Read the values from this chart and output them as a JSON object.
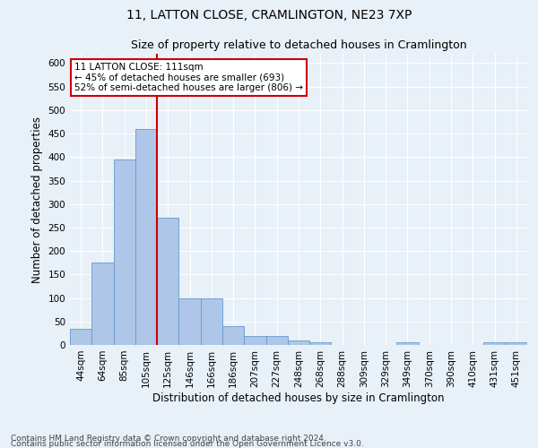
{
  "title": "11, LATTON CLOSE, CRAMLINGTON, NE23 7XP",
  "subtitle": "Size of property relative to detached houses in Cramlington",
  "xlabel": "Distribution of detached houses by size in Cramlington",
  "ylabel": "Number of detached properties",
  "footer_line1": "Contains HM Land Registry data © Crown copyright and database right 2024.",
  "footer_line2": "Contains public sector information licensed under the Open Government Licence v3.0.",
  "categories": [
    "44sqm",
    "64sqm",
    "85sqm",
    "105sqm",
    "125sqm",
    "146sqm",
    "166sqm",
    "186sqm",
    "207sqm",
    "227sqm",
    "248sqm",
    "268sqm",
    "288sqm",
    "309sqm",
    "329sqm",
    "349sqm",
    "370sqm",
    "390sqm",
    "410sqm",
    "431sqm",
    "451sqm"
  ],
  "values": [
    35,
    175,
    395,
    460,
    270,
    100,
    100,
    40,
    20,
    20,
    10,
    5,
    0,
    0,
    0,
    5,
    0,
    0,
    0,
    5,
    5
  ],
  "bar_color": "#aec6e8",
  "bar_edge_color": "#6699cc",
  "vline_x": 3.5,
  "vline_color": "#cc0000",
  "annotation_line1": "11 LATTON CLOSE: 111sqm",
  "annotation_line2": "← 45% of detached houses are smaller (693)",
  "annotation_line3": "52% of semi-detached houses are larger (806) →",
  "annotation_box_color": "#ffffff",
  "annotation_box_edge": "#cc0000",
  "ylim": [
    0,
    620
  ],
  "yticks": [
    0,
    50,
    100,
    150,
    200,
    250,
    300,
    350,
    400,
    450,
    500,
    550,
    600
  ],
  "background_color": "#e8f0f8",
  "grid_color": "#ffffff",
  "title_fontsize": 10,
  "subtitle_fontsize": 9,
  "xlabel_fontsize": 8.5,
  "ylabel_fontsize": 8.5,
  "tick_fontsize": 7.5,
  "annotation_fontsize": 7.5,
  "footer_fontsize": 6.5
}
